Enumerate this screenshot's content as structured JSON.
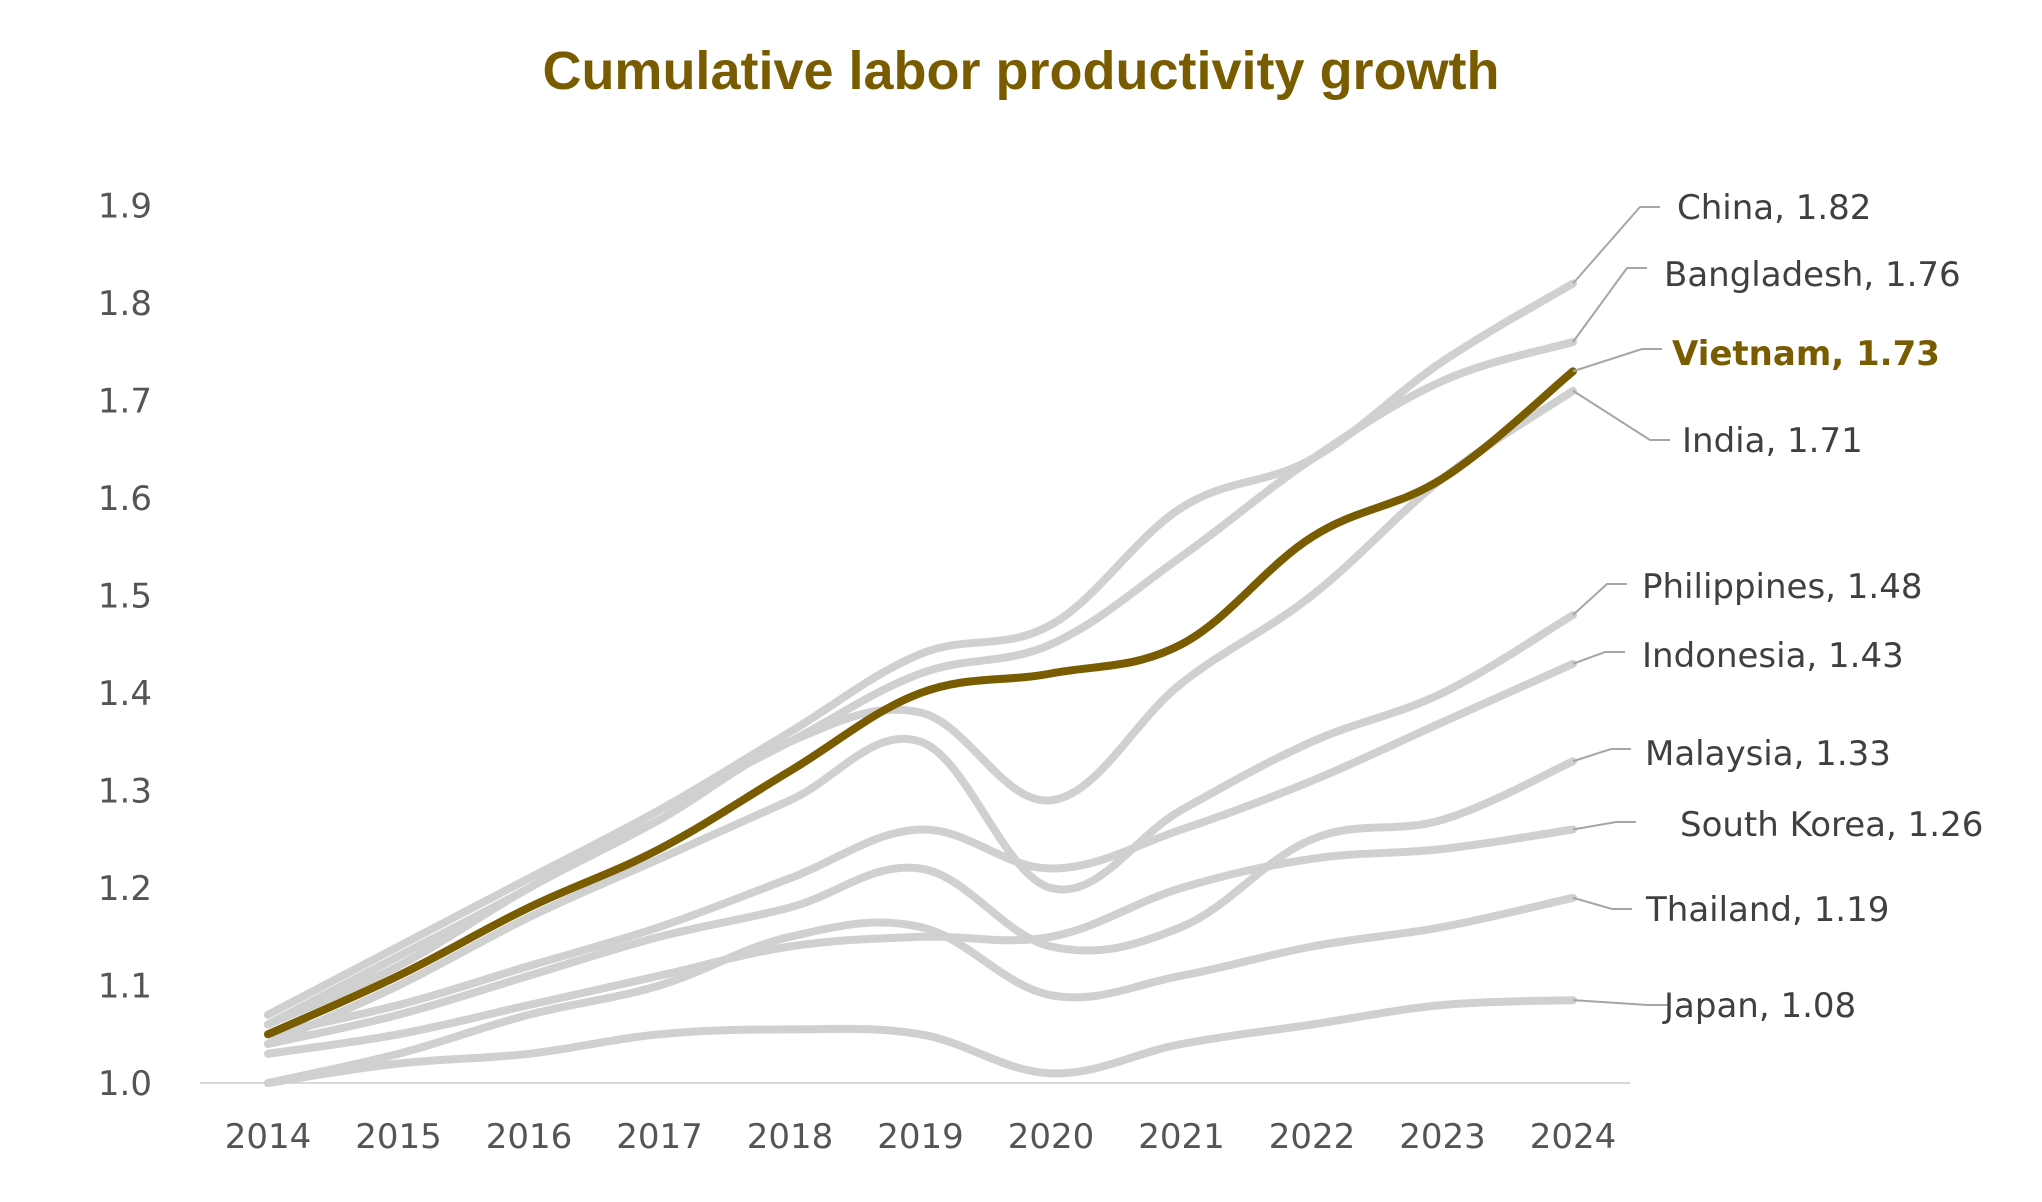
{
  "chart_data": {
    "type": "line",
    "title": "Cumulative labor productivity growth",
    "xlabel": "",
    "ylabel": "",
    "ylim": [
      1.0,
      1.9
    ],
    "y_ticks": [
      "1.0",
      "1.1",
      "1.2",
      "1.3",
      "1.4",
      "1.5",
      "1.6",
      "1.7",
      "1.8",
      "1.9"
    ],
    "x": [
      "2014",
      "2015",
      "2016",
      "2017",
      "2018",
      "2019",
      "2020",
      "2021",
      "2022",
      "2023",
      "2024"
    ],
    "grid": false,
    "legend": "none (direct end-of-line labels)",
    "colors": {
      "highlight": "#7a5c00",
      "other": "#d0d0d0",
      "leader": "#a6a6a6",
      "axis": "#d9d9d9"
    },
    "series": [
      {
        "name": "China",
        "label": "China,  1.82",
        "highlight": false,
        "values": [
          1.07,
          1.14,
          1.21,
          1.28,
          1.36,
          1.44,
          1.47,
          1.59,
          1.64,
          1.74,
          1.82
        ]
      },
      {
        "name": "Bangladesh",
        "label": "Bangladesh,  1.76",
        "highlight": false,
        "values": [
          1.06,
          1.13,
          1.2,
          1.28,
          1.35,
          1.42,
          1.45,
          1.54,
          1.64,
          1.72,
          1.76
        ]
      },
      {
        "name": "Vietnam",
        "label": "Vietnam,  1.73",
        "highlight": true,
        "values": [
          1.05,
          1.11,
          1.18,
          1.24,
          1.32,
          1.4,
          1.42,
          1.45,
          1.56,
          1.62,
          1.73
        ]
      },
      {
        "name": "India",
        "label": "India,  1.71",
        "highlight": false,
        "values": [
          1.06,
          1.12,
          1.2,
          1.27,
          1.35,
          1.38,
          1.29,
          1.41,
          1.5,
          1.62,
          1.71
        ]
      },
      {
        "name": "Philippines",
        "label": "Philippines,  1.48",
        "highlight": false,
        "values": [
          1.04,
          1.1,
          1.17,
          1.23,
          1.29,
          1.35,
          1.2,
          1.28,
          1.35,
          1.4,
          1.48
        ]
      },
      {
        "name": "Indonesia",
        "label": "Indonesia,  1.43",
        "highlight": false,
        "values": [
          1.05,
          1.08,
          1.12,
          1.16,
          1.21,
          1.26,
          1.22,
          1.26,
          1.31,
          1.37,
          1.43
        ]
      },
      {
        "name": "Malaysia",
        "label": "Malaysia,  1.33",
        "highlight": false,
        "values": [
          1.04,
          1.07,
          1.11,
          1.15,
          1.18,
          1.22,
          1.14,
          1.16,
          1.25,
          1.27,
          1.33
        ]
      },
      {
        "name": "South Korea",
        "label": "South Korea,  1.26",
        "highlight": false,
        "values": [
          1.03,
          1.05,
          1.08,
          1.11,
          1.14,
          1.15,
          1.15,
          1.2,
          1.23,
          1.24,
          1.26
        ]
      },
      {
        "name": "Thailand",
        "label": "Thailand,  1.19",
        "highlight": false,
        "values": [
          1.0,
          1.03,
          1.07,
          1.1,
          1.15,
          1.16,
          1.09,
          1.11,
          1.14,
          1.16,
          1.19
        ]
      },
      {
        "name": "Japan",
        "label": "Japan,  1.08",
        "highlight": false,
        "values": [
          1.0,
          1.02,
          1.03,
          1.05,
          1.055,
          1.05,
          1.01,
          1.04,
          1.06,
          1.08,
          1.085
        ]
      }
    ]
  }
}
